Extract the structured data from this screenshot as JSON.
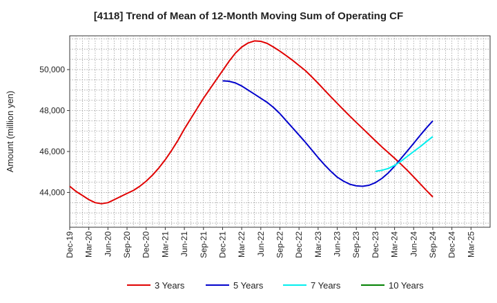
{
  "chart_data": {
    "type": "line",
    "title": "[4118]  Trend of Mean of 12-Month Moving Sum of Operating CF",
    "xlabel": "",
    "ylabel": "Amount (million yen)",
    "ylim": [
      42300,
      51650
    ],
    "yticks": [
      44000,
      46000,
      48000,
      50000
    ],
    "ytick_labels": [
      "44,000",
      "46,000",
      "48,000",
      "50,000"
    ],
    "x_months_range": [
      0,
      66
    ],
    "xticks": [
      "Dec-19",
      "Mar-20",
      "Jun-20",
      "Sep-20",
      "Dec-20",
      "Mar-21",
      "Jun-21",
      "Sep-21",
      "Dec-21",
      "Mar-22",
      "Jun-22",
      "Sep-22",
      "Dec-22",
      "Mar-23",
      "Jun-23",
      "Sep-23",
      "Dec-23",
      "Mar-24",
      "Jun-24",
      "Sep-24",
      "Dec-24",
      "Mar-25"
    ],
    "grid": true,
    "legend_position": "bottom",
    "series": [
      {
        "name": "3 Years",
        "color": "#e00000",
        "x": [
          0,
          1,
          2,
          3,
          4,
          5,
          6,
          7,
          8,
          9,
          10,
          11,
          12,
          13,
          14,
          15,
          16,
          17,
          18,
          19,
          20,
          21,
          22,
          23,
          24,
          25,
          26,
          27,
          28,
          29,
          30,
          31,
          32,
          33,
          34,
          35,
          36,
          37,
          38,
          39,
          40,
          41,
          42,
          43,
          44,
          45,
          46,
          47,
          48,
          49,
          50,
          51,
          52,
          53,
          54,
          55,
          56,
          57
        ],
        "values": [
          44300,
          44050,
          43850,
          43650,
          43500,
          43450,
          43500,
          43650,
          43800,
          43950,
          44100,
          44300,
          44550,
          44850,
          45200,
          45600,
          46050,
          46550,
          47100,
          47600,
          48100,
          48600,
          49050,
          49500,
          49950,
          50400,
          50800,
          51100,
          51300,
          51400,
          51380,
          51280,
          51100,
          50900,
          50680,
          50450,
          50200,
          49950,
          49650,
          49330,
          49000,
          48670,
          48350,
          48030,
          47720,
          47420,
          47120,
          46820,
          46520,
          46230,
          45950,
          45670,
          45380,
          45080,
          44760,
          44430,
          44100,
          43780
        ]
      },
      {
        "name": "5 Years",
        "color": "#0000cc",
        "x": [
          24,
          25,
          26,
          27,
          28,
          29,
          30,
          31,
          32,
          33,
          34,
          35,
          36,
          37,
          38,
          39,
          40,
          41,
          42,
          43,
          44,
          45,
          46,
          47,
          48,
          49,
          50,
          51,
          52,
          53,
          54,
          55,
          56,
          57
        ],
        "values": [
          49450,
          49430,
          49350,
          49200,
          49000,
          48800,
          48600,
          48400,
          48150,
          47850,
          47500,
          47150,
          46800,
          46450,
          46080,
          45700,
          45350,
          45030,
          44750,
          44550,
          44400,
          44320,
          44300,
          44350,
          44480,
          44680,
          44950,
          45280,
          45650,
          46020,
          46400,
          46780,
          47150,
          47500
        ]
      },
      {
        "name": "7 Years",
        "color": "#00eeee",
        "x": [
          48,
          49,
          50,
          51,
          52,
          53,
          54,
          55,
          56,
          57
        ],
        "values": [
          45030,
          45080,
          45170,
          45320,
          45520,
          45760,
          46000,
          46230,
          46480,
          46730
        ]
      },
      {
        "name": "10 Years",
        "color": "#008000",
        "x": [],
        "values": []
      }
    ]
  }
}
